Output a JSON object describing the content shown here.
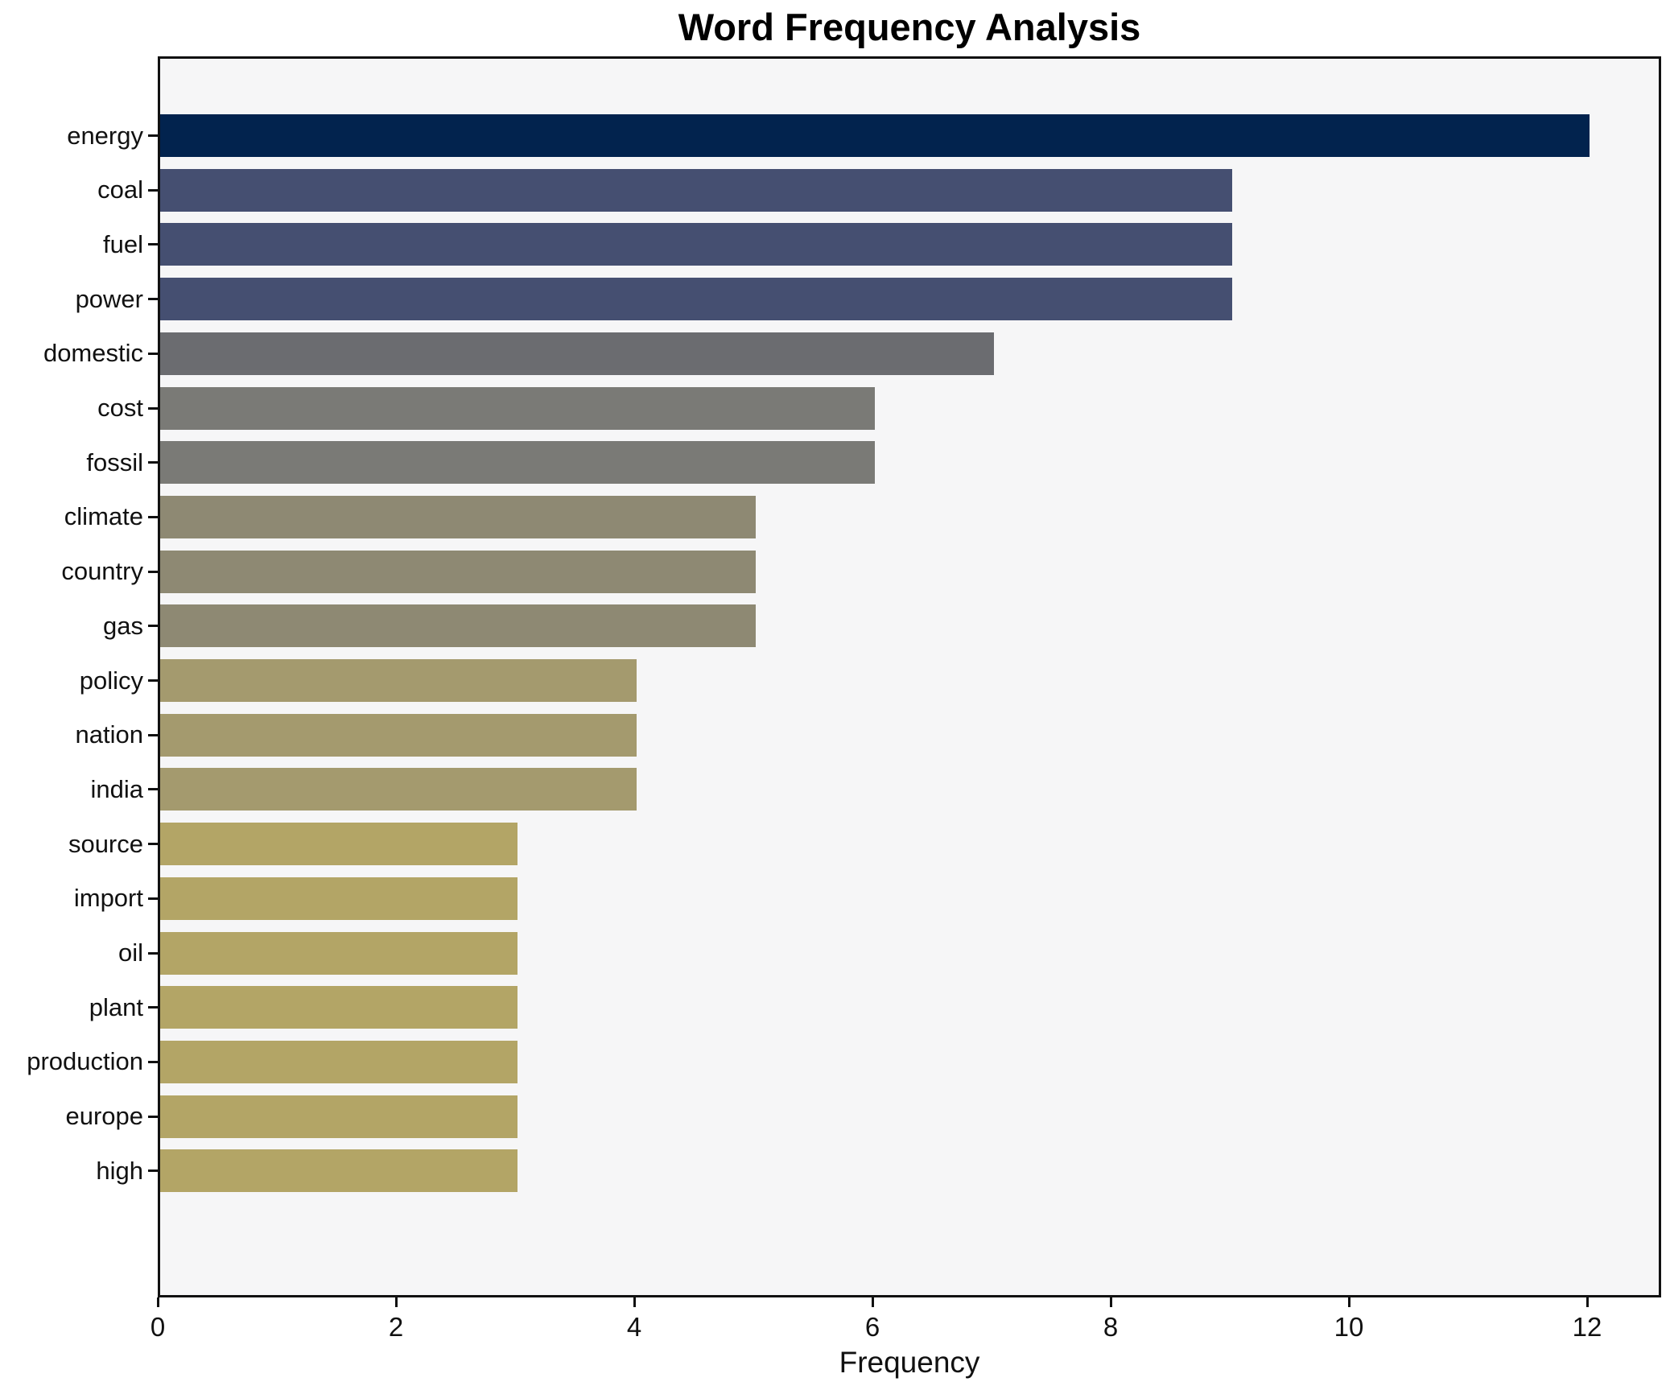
{
  "chart_data": {
    "type": "bar",
    "orientation": "horizontal",
    "title": "Word Frequency Analysis",
    "xlabel": "Frequency",
    "ylabel": "",
    "categories": [
      "energy",
      "coal",
      "fuel",
      "power",
      "domestic",
      "cost",
      "fossil",
      "climate",
      "country",
      "gas",
      "policy",
      "nation",
      "india",
      "source",
      "import",
      "oil",
      "plant",
      "production",
      "europe",
      "high"
    ],
    "values": [
      12,
      9,
      9,
      9,
      7,
      6,
      6,
      5,
      5,
      5,
      4,
      4,
      4,
      3,
      3,
      3,
      3,
      3,
      3,
      3
    ],
    "colors": [
      "#02234e",
      "#454f71",
      "#454f71",
      "#454f71",
      "#6b6c70",
      "#7a7a76",
      "#7a7a76",
      "#8e8973",
      "#8e8973",
      "#8e8973",
      "#a49a6e",
      "#a49a6e",
      "#a49a6e",
      "#b3a566",
      "#b3a566",
      "#b3a566",
      "#b3a566",
      "#b3a566",
      "#b3a566",
      "#b3a566"
    ],
    "xticks": [
      0,
      2,
      4,
      6,
      8,
      10,
      12
    ],
    "xlim": [
      0,
      12.6
    ],
    "grid": false,
    "legend": null,
    "plot_background": "#f6f6f7",
    "bar_height_ratio": 0.78
  }
}
